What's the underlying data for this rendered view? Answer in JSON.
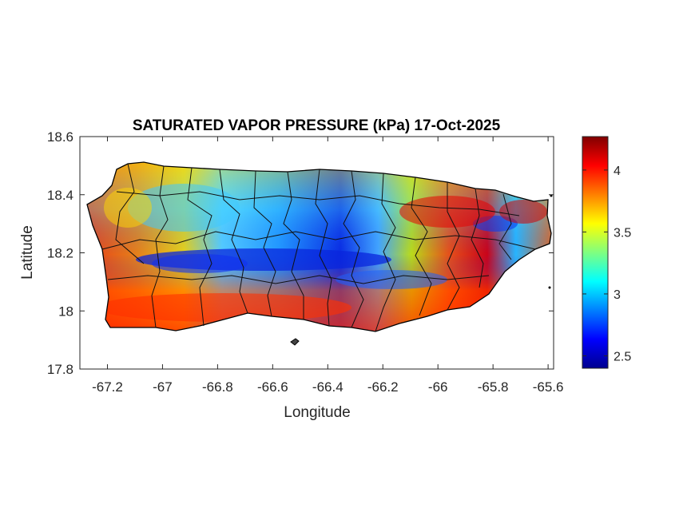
{
  "chart_data": {
    "type": "heatmap",
    "title": "SATURATED VAPOR PRESSURE (kPa) 17-Oct-2025",
    "xlabel": "Longitude",
    "ylabel": "Latitude",
    "xlim": [
      -67.3,
      -65.58
    ],
    "ylim": [
      17.8,
      18.6
    ],
    "xticks": [
      -67.2,
      -67,
      -66.8,
      -66.6,
      -66.4,
      -66.2,
      -66,
      -65.8,
      -65.6
    ],
    "yticks": [
      18.6,
      18.4,
      18.2,
      18,
      17.8
    ],
    "xtick_labels": [
      "-67.2",
      "-67",
      "-66.8",
      "-66.6",
      "-66.4",
      "-66.2",
      "-66",
      "-65.8",
      "-65.6"
    ],
    "ytick_labels": [
      "18.6",
      "18.4",
      "18.2",
      "18",
      "17.8"
    ],
    "colorbar": {
      "colormap": "jet",
      "range": [
        2.4,
        4.27
      ],
      "ticks": [
        2.5,
        3,
        3.5,
        4
      ],
      "tick_labels": [
        "2.5",
        "3",
        "3.5",
        "4"
      ]
    },
    "region": "Puerto Rico",
    "field_pattern": "low values (about 2.5-3 kPa) along the central mountain ridge and northwest interior; high values (about 4 kPa) along the south coast and in the northeast",
    "grid": false,
    "box": true
  }
}
